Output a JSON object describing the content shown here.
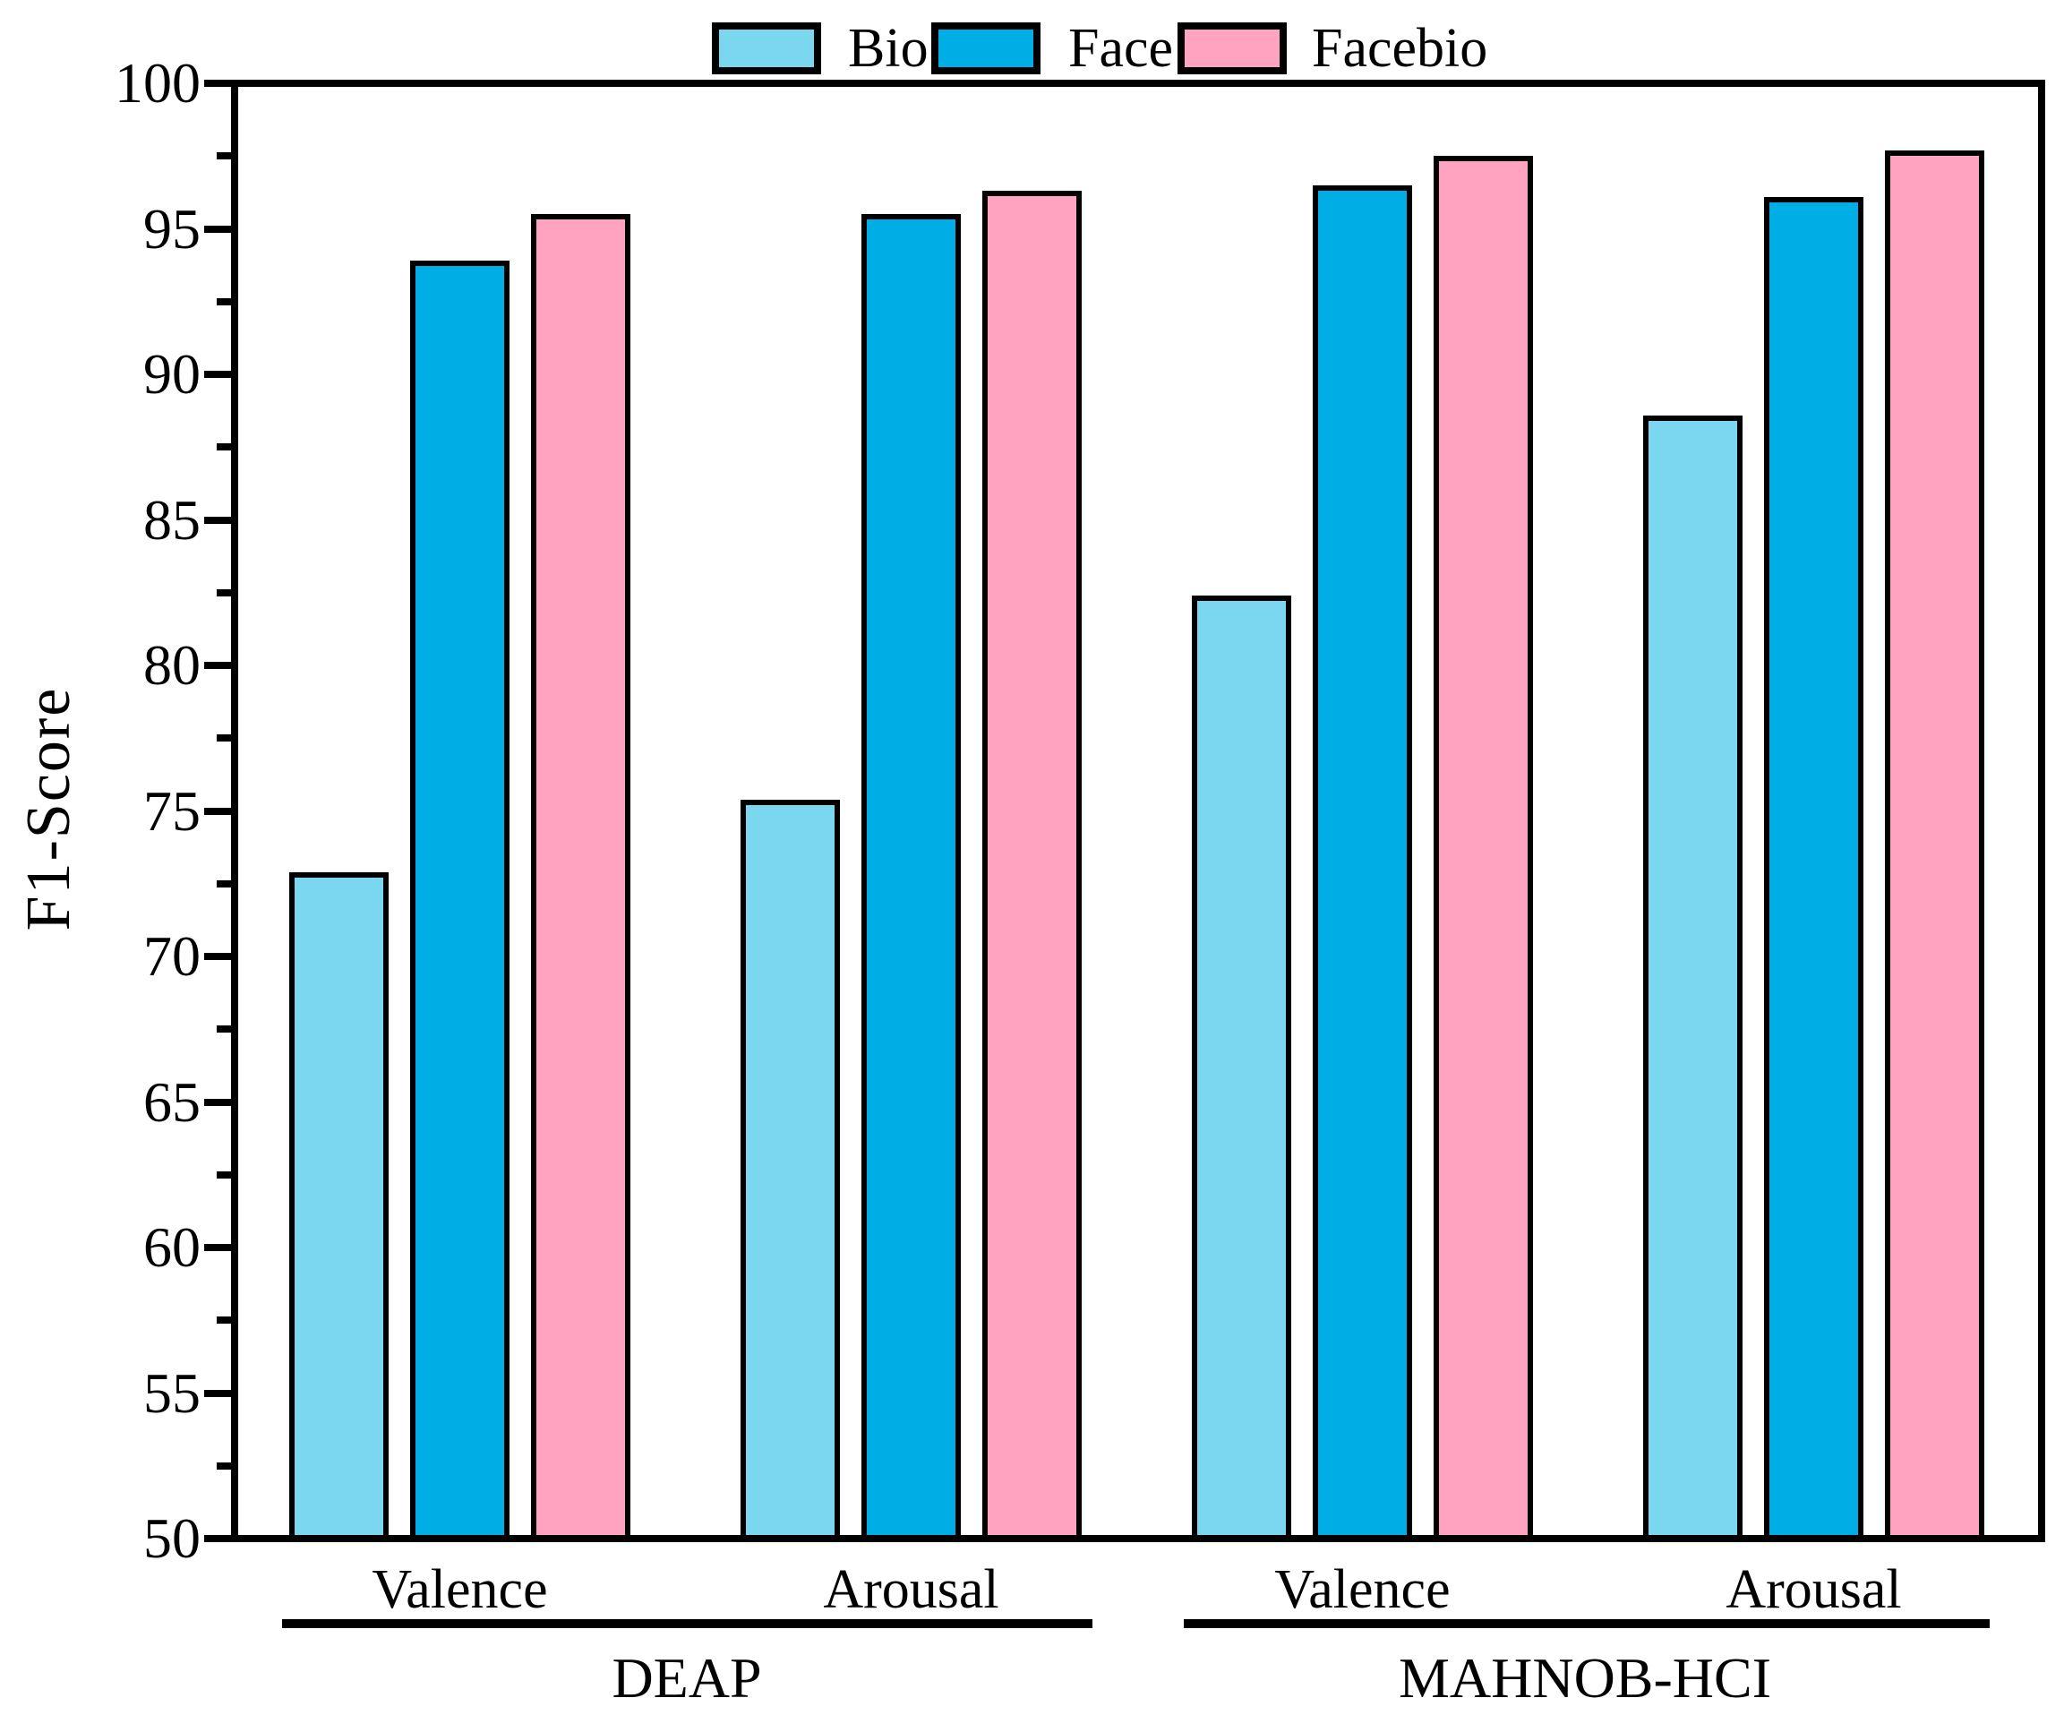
{
  "chart_data": {
    "type": "bar",
    "title": "",
    "ylabel": "F1-Score",
    "xlabel": "",
    "ylim": [
      50,
      100
    ],
    "yticks": [
      50,
      55,
      60,
      65,
      70,
      75,
      80,
      85,
      90,
      95,
      100
    ],
    "yminor_step": 2.5,
    "grid": false,
    "legend_position": "top-center",
    "categories": [
      "Valence",
      "Arousal",
      "Valence",
      "Arousal"
    ],
    "category_group_index": [
      0,
      0,
      1,
      1
    ],
    "group_labels": [
      "DEAP",
      "MAHNOB-HCI"
    ],
    "series": [
      {
        "name": "Bio",
        "color": "#7BD7EF",
        "values": [
          72.9,
          75.4,
          82.4,
          88.6
        ]
      },
      {
        "name": "Face",
        "color": "#00AEE6",
        "values": [
          93.9,
          95.5,
          96.5,
          96.1
        ]
      },
      {
        "name": "Facebio",
        "color": "#FFA3C1",
        "values": [
          95.5,
          96.3,
          97.5,
          97.7
        ]
      }
    ],
    "bar_edge_color": "#000000",
    "axis_color": "#000000"
  }
}
